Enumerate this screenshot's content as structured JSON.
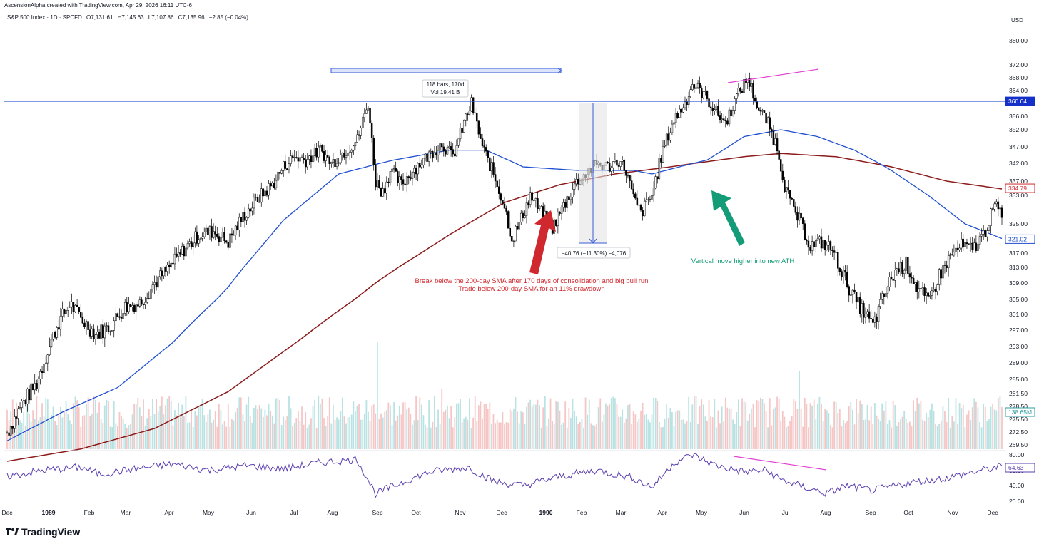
{
  "header": {
    "credit": "AscensionAlpha created with TradingView.com, Apr 29, 2026 16:11 UTC-6",
    "symbol": "S&P 500 Index · 1D · SPCFD",
    "open": "O7,131.61",
    "high": "H7,145.63",
    "low": "L7,107.86",
    "close": "C7,135.96",
    "change": "−2.85 (−0.04%)"
  },
  "brand": {
    "name": "TradingView"
  },
  "colors": {
    "up": "#000000",
    "candle_body_up": "#ffffff",
    "candle_body_down": "#000000",
    "sma_fast": "#1f4fd1",
    "sma_slow": "#8b1a1a",
    "rsi": "#5b3fb0",
    "divergence": "#e040d0",
    "resistance": "#3a5bd9",
    "volume_up": "#a8dcdc",
    "volume_down": "#f4b8b8",
    "annotation_red": "#d0282f",
    "annotation_green": "#149c78"
  },
  "chart_data": {
    "type": "candlestick",
    "ylabel": "USD",
    "y_ticks": [
      "380.00",
      "372.00",
      "368.00",
      "364.00",
      "356.00",
      "352.00",
      "347.00",
      "342.00",
      "337.00",
      "333.00",
      "325.00",
      "317.00",
      "313.00",
      "309.00",
      "305.00",
      "301.00",
      "297.00",
      "293.00",
      "289.00",
      "285.00",
      "281.50",
      "278.50",
      "275.50",
      "272.50",
      "269.50"
    ],
    "rsi_ticks": [
      "80.00",
      "60.00",
      "40.00",
      "20.00"
    ],
    "x_ticks": [
      "Dec",
      "1989",
      "Feb",
      "Mar",
      "Apr",
      "May",
      "Jun",
      "Jul",
      "Aug",
      "Sep",
      "Oct",
      "Nov",
      "Dec",
      "1990",
      "Feb",
      "Mar",
      "Apr",
      "May",
      "Jun",
      "Jul",
      "Aug",
      "Sep",
      "Oct",
      "Nov",
      "Dec"
    ],
    "price_keypoints": [
      [
        0,
        272
      ],
      [
        8,
        279
      ],
      [
        16,
        284
      ],
      [
        22,
        292
      ],
      [
        28,
        299
      ],
      [
        34,
        304
      ],
      [
        40,
        300
      ],
      [
        48,
        296
      ],
      [
        56,
        298
      ],
      [
        64,
        303
      ],
      [
        72,
        304
      ],
      [
        80,
        309
      ],
      [
        88,
        313
      ],
      [
        96,
        318
      ],
      [
        104,
        322
      ],
      [
        112,
        323
      ],
      [
        120,
        320
      ],
      [
        128,
        327
      ],
      [
        136,
        332
      ],
      [
        144,
        336
      ],
      [
        150,
        341
      ],
      [
        156,
        344
      ],
      [
        162,
        343
      ],
      [
        170,
        346
      ],
      [
        176,
        342
      ],
      [
        182,
        345
      ],
      [
        190,
        349
      ],
      [
        196,
        360
      ],
      [
        200,
        337
      ],
      [
        204,
        334
      ],
      [
        208,
        340
      ],
      [
        214,
        336
      ],
      [
        220,
        340
      ],
      [
        228,
        344
      ],
      [
        236,
        348
      ],
      [
        242,
        344
      ],
      [
        248,
        354
      ],
      [
        252,
        360
      ],
      [
        258,
        347
      ],
      [
        264,
        339
      ],
      [
        270,
        330
      ],
      [
        274,
        321
      ],
      [
        278,
        325
      ],
      [
        284,
        333
      ],
      [
        290,
        328
      ],
      [
        296,
        324
      ],
      [
        302,
        330
      ],
      [
        308,
        336
      ],
      [
        314,
        339
      ],
      [
        320,
        342
      ],
      [
        326,
        341
      ],
      [
        332,
        343
      ],
      [
        336,
        340
      ],
      [
        340,
        332
      ],
      [
        344,
        328
      ],
      [
        350,
        333
      ],
      [
        356,
        346
      ],
      [
        362,
        355
      ],
      [
        368,
        360
      ],
      [
        372,
        366
      ],
      [
        378,
        363
      ],
      [
        384,
        358
      ],
      [
        390,
        354
      ],
      [
        396,
        362
      ],
      [
        402,
        368
      ],
      [
        408,
        358
      ],
      [
        412,
        355
      ],
      [
        418,
        347
      ],
      [
        422,
        336
      ],
      [
        426,
        330
      ],
      [
        430,
        326
      ],
      [
        436,
        319
      ],
      [
        442,
        320
      ],
      [
        448,
        318
      ],
      [
        454,
        311
      ],
      [
        460,
        305
      ],
      [
        466,
        301
      ],
      [
        470,
        298
      ],
      [
        476,
        306
      ],
      [
        482,
        312
      ],
      [
        488,
        314
      ],
      [
        494,
        308
      ],
      [
        500,
        304
      ],
      [
        506,
        311
      ],
      [
        512,
        316
      ],
      [
        518,
        319
      ],
      [
        524,
        318
      ],
      [
        530,
        322
      ],
      [
        536,
        330
      ],
      [
        540,
        328
      ]
    ],
    "sma_fast_keypoints": [
      [
        0,
        270
      ],
      [
        30,
        277
      ],
      [
        60,
        283
      ],
      [
        90,
        294
      ],
      [
        120,
        308
      ],
      [
        150,
        326
      ],
      [
        180,
        339
      ],
      [
        210,
        343
      ],
      [
        240,
        346
      ],
      [
        260,
        346
      ],
      [
        280,
        341
      ],
      [
        310,
        340
      ],
      [
        340,
        340
      ],
      [
        350,
        339
      ],
      [
        380,
        343
      ],
      [
        400,
        350
      ],
      [
        420,
        352
      ],
      [
        440,
        350
      ],
      [
        460,
        346
      ],
      [
        480,
        340
      ],
      [
        500,
        333
      ],
      [
        520,
        325
      ],
      [
        540,
        321
      ]
    ],
    "sma_slow_keypoints": [
      [
        0,
        265
      ],
      [
        40,
        268
      ],
      [
        80,
        273
      ],
      [
        120,
        282
      ],
      [
        160,
        295
      ],
      [
        200,
        309
      ],
      [
        240,
        322
      ],
      [
        270,
        331
      ],
      [
        300,
        336
      ],
      [
        330,
        339
      ],
      [
        360,
        341
      ],
      [
        400,
        344
      ],
      [
        420,
        345
      ],
      [
        450,
        344
      ],
      [
        480,
        341
      ],
      [
        510,
        337
      ],
      [
        540,
        334.8
      ]
    ],
    "rsi_keypoints": [
      [
        0,
        52
      ],
      [
        20,
        60
      ],
      [
        40,
        64
      ],
      [
        50,
        55
      ],
      [
        70,
        62
      ],
      [
        90,
        68
      ],
      [
        110,
        60
      ],
      [
        130,
        66
      ],
      [
        150,
        62
      ],
      [
        170,
        70
      ],
      [
        190,
        74
      ],
      [
        200,
        30
      ],
      [
        215,
        45
      ],
      [
        230,
        58
      ],
      [
        250,
        64
      ],
      [
        265,
        45
      ],
      [
        280,
        40
      ],
      [
        300,
        52
      ],
      [
        320,
        60
      ],
      [
        340,
        50
      ],
      [
        350,
        38
      ],
      [
        362,
        70
      ],
      [
        372,
        80
      ],
      [
        385,
        66
      ],
      [
        400,
        58
      ],
      [
        412,
        60
      ],
      [
        420,
        48
      ],
      [
        430,
        40
      ],
      [
        445,
        30
      ],
      [
        455,
        40
      ],
      [
        470,
        34
      ],
      [
        490,
        44
      ],
      [
        510,
        50
      ],
      [
        525,
        58
      ],
      [
        540,
        65
      ]
    ],
    "volume_seed": 7,
    "last_labels": {
      "resistance": "360.64",
      "sma_slow": "334.79",
      "sma_fast": "321.02",
      "volume": "138.65M",
      "rsi": "64.63"
    }
  },
  "annotations": {
    "range_box": {
      "bars": "118 bars, 170d",
      "vol": "Vol 19.41 B"
    },
    "drawdown": "−40.76 (−11.30%) −4,076",
    "break_note_1": "Break below the 200-day SMA after 170 days of consolidation and big bull run",
    "break_note_2": "Trade below 200-day SMA for an 11% drawdown",
    "ath_note": "Vertical move higher into new ATH"
  }
}
